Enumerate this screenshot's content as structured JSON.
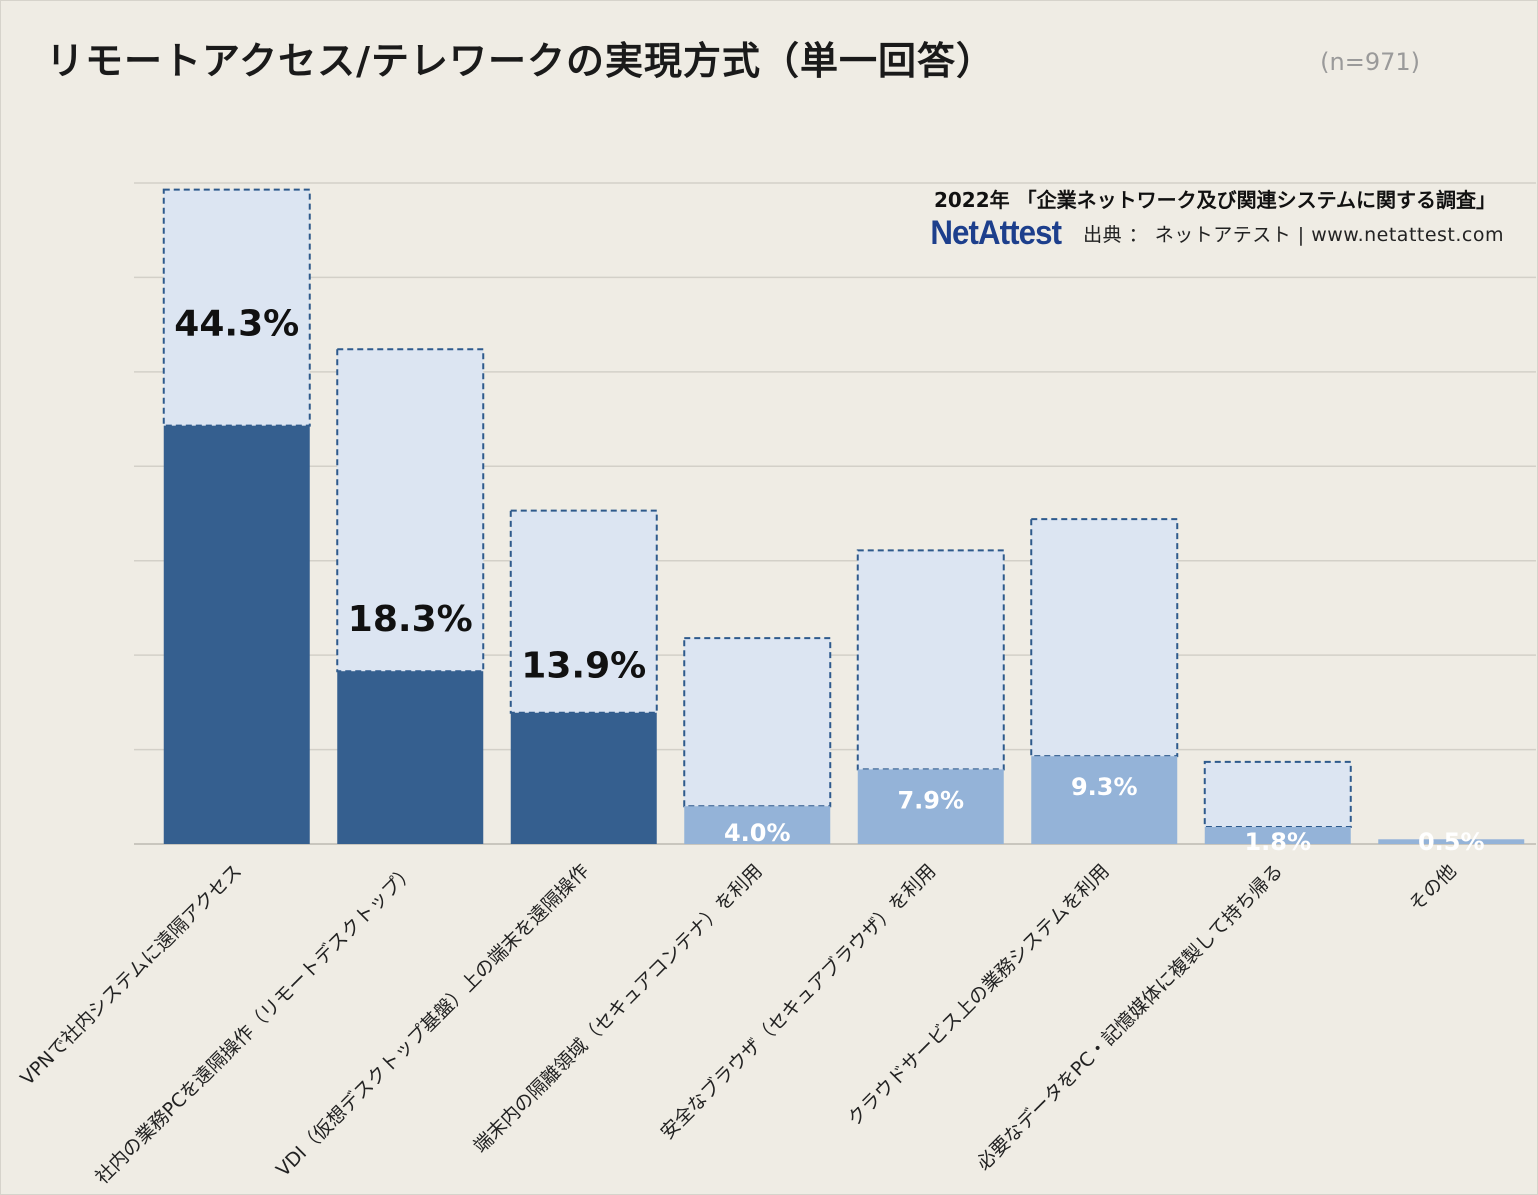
{
  "title": "リモートアクセス/テレワークの実現方式（単一回答）",
  "sample_size": "(n=971)",
  "survey_name": "2022年 「企業ネットワーク及び関連システムに関する調査」",
  "logo_text": "NetAttest",
  "source_text": "出典 ： ネットアテスト | www.netattest.com",
  "colors": {
    "background": "#efece4",
    "bar_dark": "#355f8f",
    "bar_light": "#94b3d8",
    "overlay_fill": "#dce5f2",
    "overlay_border": "#2e5a8c",
    "gridline": "#d3d0c8"
  },
  "chart_data": {
    "type": "bar",
    "ylim": [
      0,
      70
    ],
    "grid": true,
    "categories": [
      "VPNで社内システムに遠隔アクセス",
      "社内の業務PCを遠隔操作（リモートデスクトップ）",
      "VDI（仮想デスクトップ基盤）上の端末を遠隔操作",
      "端末内の隔離領域（セキュアコンテナ）を利用",
      "安全なブラウザ（セキュアブラウザ）を利用",
      "クラウドサービス上の業務システムを利用",
      "必要なデータをPC・記憶媒体に複製して持ち帰る",
      "その他"
    ],
    "values": [
      44.3,
      18.3,
      13.9,
      4.0,
      7.9,
      9.3,
      1.8,
      0.5
    ],
    "value_labels": [
      "44.3%",
      "18.3%",
      "13.9%",
      "4.0%",
      "7.9%",
      "9.3%",
      "1.8%",
      "0.5%"
    ],
    "highlight_top3": [
      true,
      true,
      true,
      false,
      false,
      false,
      false,
      false
    ],
    "overlay_top": [
      69.3,
      52.4,
      35.3,
      21.8,
      31.1,
      34.4,
      8.7,
      null
    ]
  }
}
